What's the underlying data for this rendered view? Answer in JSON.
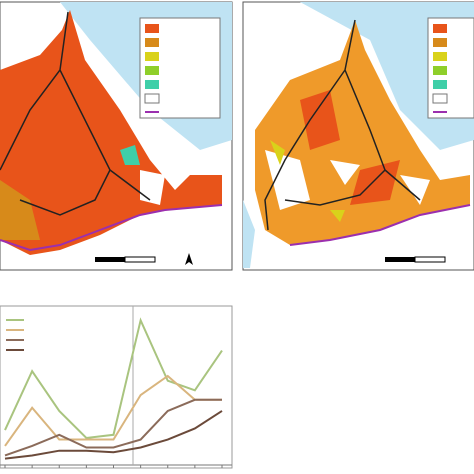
{
  "chart_data": {
    "type": "line",
    "categories": [
      null,
      null,
      null,
      null,
      null,
      null,
      null,
      null,
      null
    ],
    "ylim": [
      0,
      100
    ],
    "series": [
      {
        "color": "#a9c47f",
        "values": [
          22,
          59,
          34,
          17,
          19,
          91,
          53,
          47,
          72
        ]
      },
      {
        "color": "#d9b57e",
        "values": [
          12,
          36,
          16,
          16,
          16,
          44,
          56,
          41,
          41
        ]
      },
      {
        "color": "#8b6b5a",
        "values": [
          6,
          12,
          19,
          11,
          11,
          16,
          34,
          41,
          41
        ]
      },
      {
        "color": "#6b4a3a",
        "values": [
          4,
          6,
          9,
          9,
          8,
          11,
          16,
          23,
          34
        ]
      }
    ]
  }
}
